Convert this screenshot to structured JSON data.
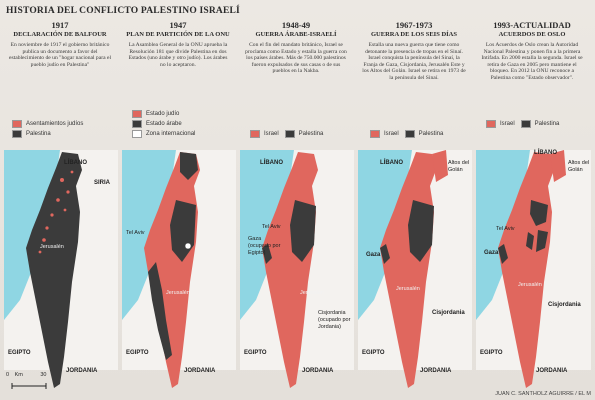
{
  "title": "HISTORIA DEL CONFLICTO PALESTINO ISRAELÍ",
  "colors": {
    "israel": "#e0675e",
    "palestine": "#3b3b3b",
    "sea": "#8fd6e3",
    "land": "#f4f2ef",
    "international": "#ffffff"
  },
  "panels": [
    {
      "year": "1917",
      "heading": "DECLARACIÓN DE BALFOUR",
      "description": "En noviembre de 1917 el gobierno británico publica un documento a favor del establecimiento de un \"hogar nacional para el pueblo judío en Palestina\"",
      "legend": [
        "Asentamientos judíos",
        "Palestina"
      ]
    },
    {
      "year": "1947",
      "heading": "PLAN DE PARTICIÓN DE LA ONU",
      "description": "La Asamblea General de la ONU aprueba la Resolución 181 que divide Palestina en dos Estados (uno árabe y otro judío). Los árabes no lo aceptaron.",
      "legend": [
        "Estado judío",
        "Estado árabe",
        "Zona internacional"
      ]
    },
    {
      "year": "1948-49",
      "heading": "GUERRA ÁRABE-ISRAELÍ",
      "description": "Con el fin del mandato británico, Israel se proclama como Estado y estalla la guerra con los países árabes. Más de 750.000 palestinos fueron expulsados de sus casas o de sus pueblos en la Nakba.",
      "legend": [
        "Israel",
        "Palestina"
      ]
    },
    {
      "year": "1967-1973",
      "heading": "GUERRA DE LOS SEIS DÍAS",
      "description": "Estalla una nueva guerra que tiene como detonante la presencia de tropas en el Sinaí. Israel conquista la península del Sinaí, la Franja de Gaza, Cisjordania, Jerusalén Este y los Altos del Golán. Israel se retira en 1973 de la península del Sinaí.",
      "legend": [
        "Israel",
        "Palestina"
      ]
    },
    {
      "year": "1993-ACTUALIDAD",
      "heading": "ACUERDOS DE OSLO",
      "description": "Los Acuerdos de Oslo crean la Autoridad Nacional Palestina y ponen fin a la primera Intifada. En 2000 estalla la segunda. Israel se retira de Gaza en 2005 pero mantiene el bloqueo. En 2012 la ONU reconoce a Palestina como \"Estado observador\".",
      "legend": [
        "Israel",
        "Palestina"
      ]
    }
  ],
  "places": {
    "lebanon": "LÍBANO",
    "syria": "SIRIA",
    "egypt": "EGIPTO",
    "jordan": "JORDANIA",
    "jerusalem": "Jerusalén",
    "tel_aviv": "Tel Aviv",
    "gaza": "Gaza",
    "gaza_occupied": "Gaza (ocupado por Egipto)",
    "west_bank": "Cisjordania",
    "west_bank_occupied": "Cisjordania (ocupado por Jordania)",
    "golan": "Altos del Golán"
  },
  "scale": {
    "zero": "0",
    "unit": "Km",
    "max": "30"
  },
  "credit": "JUAN C. SANTHOLZ AGUIRRE / EL M"
}
